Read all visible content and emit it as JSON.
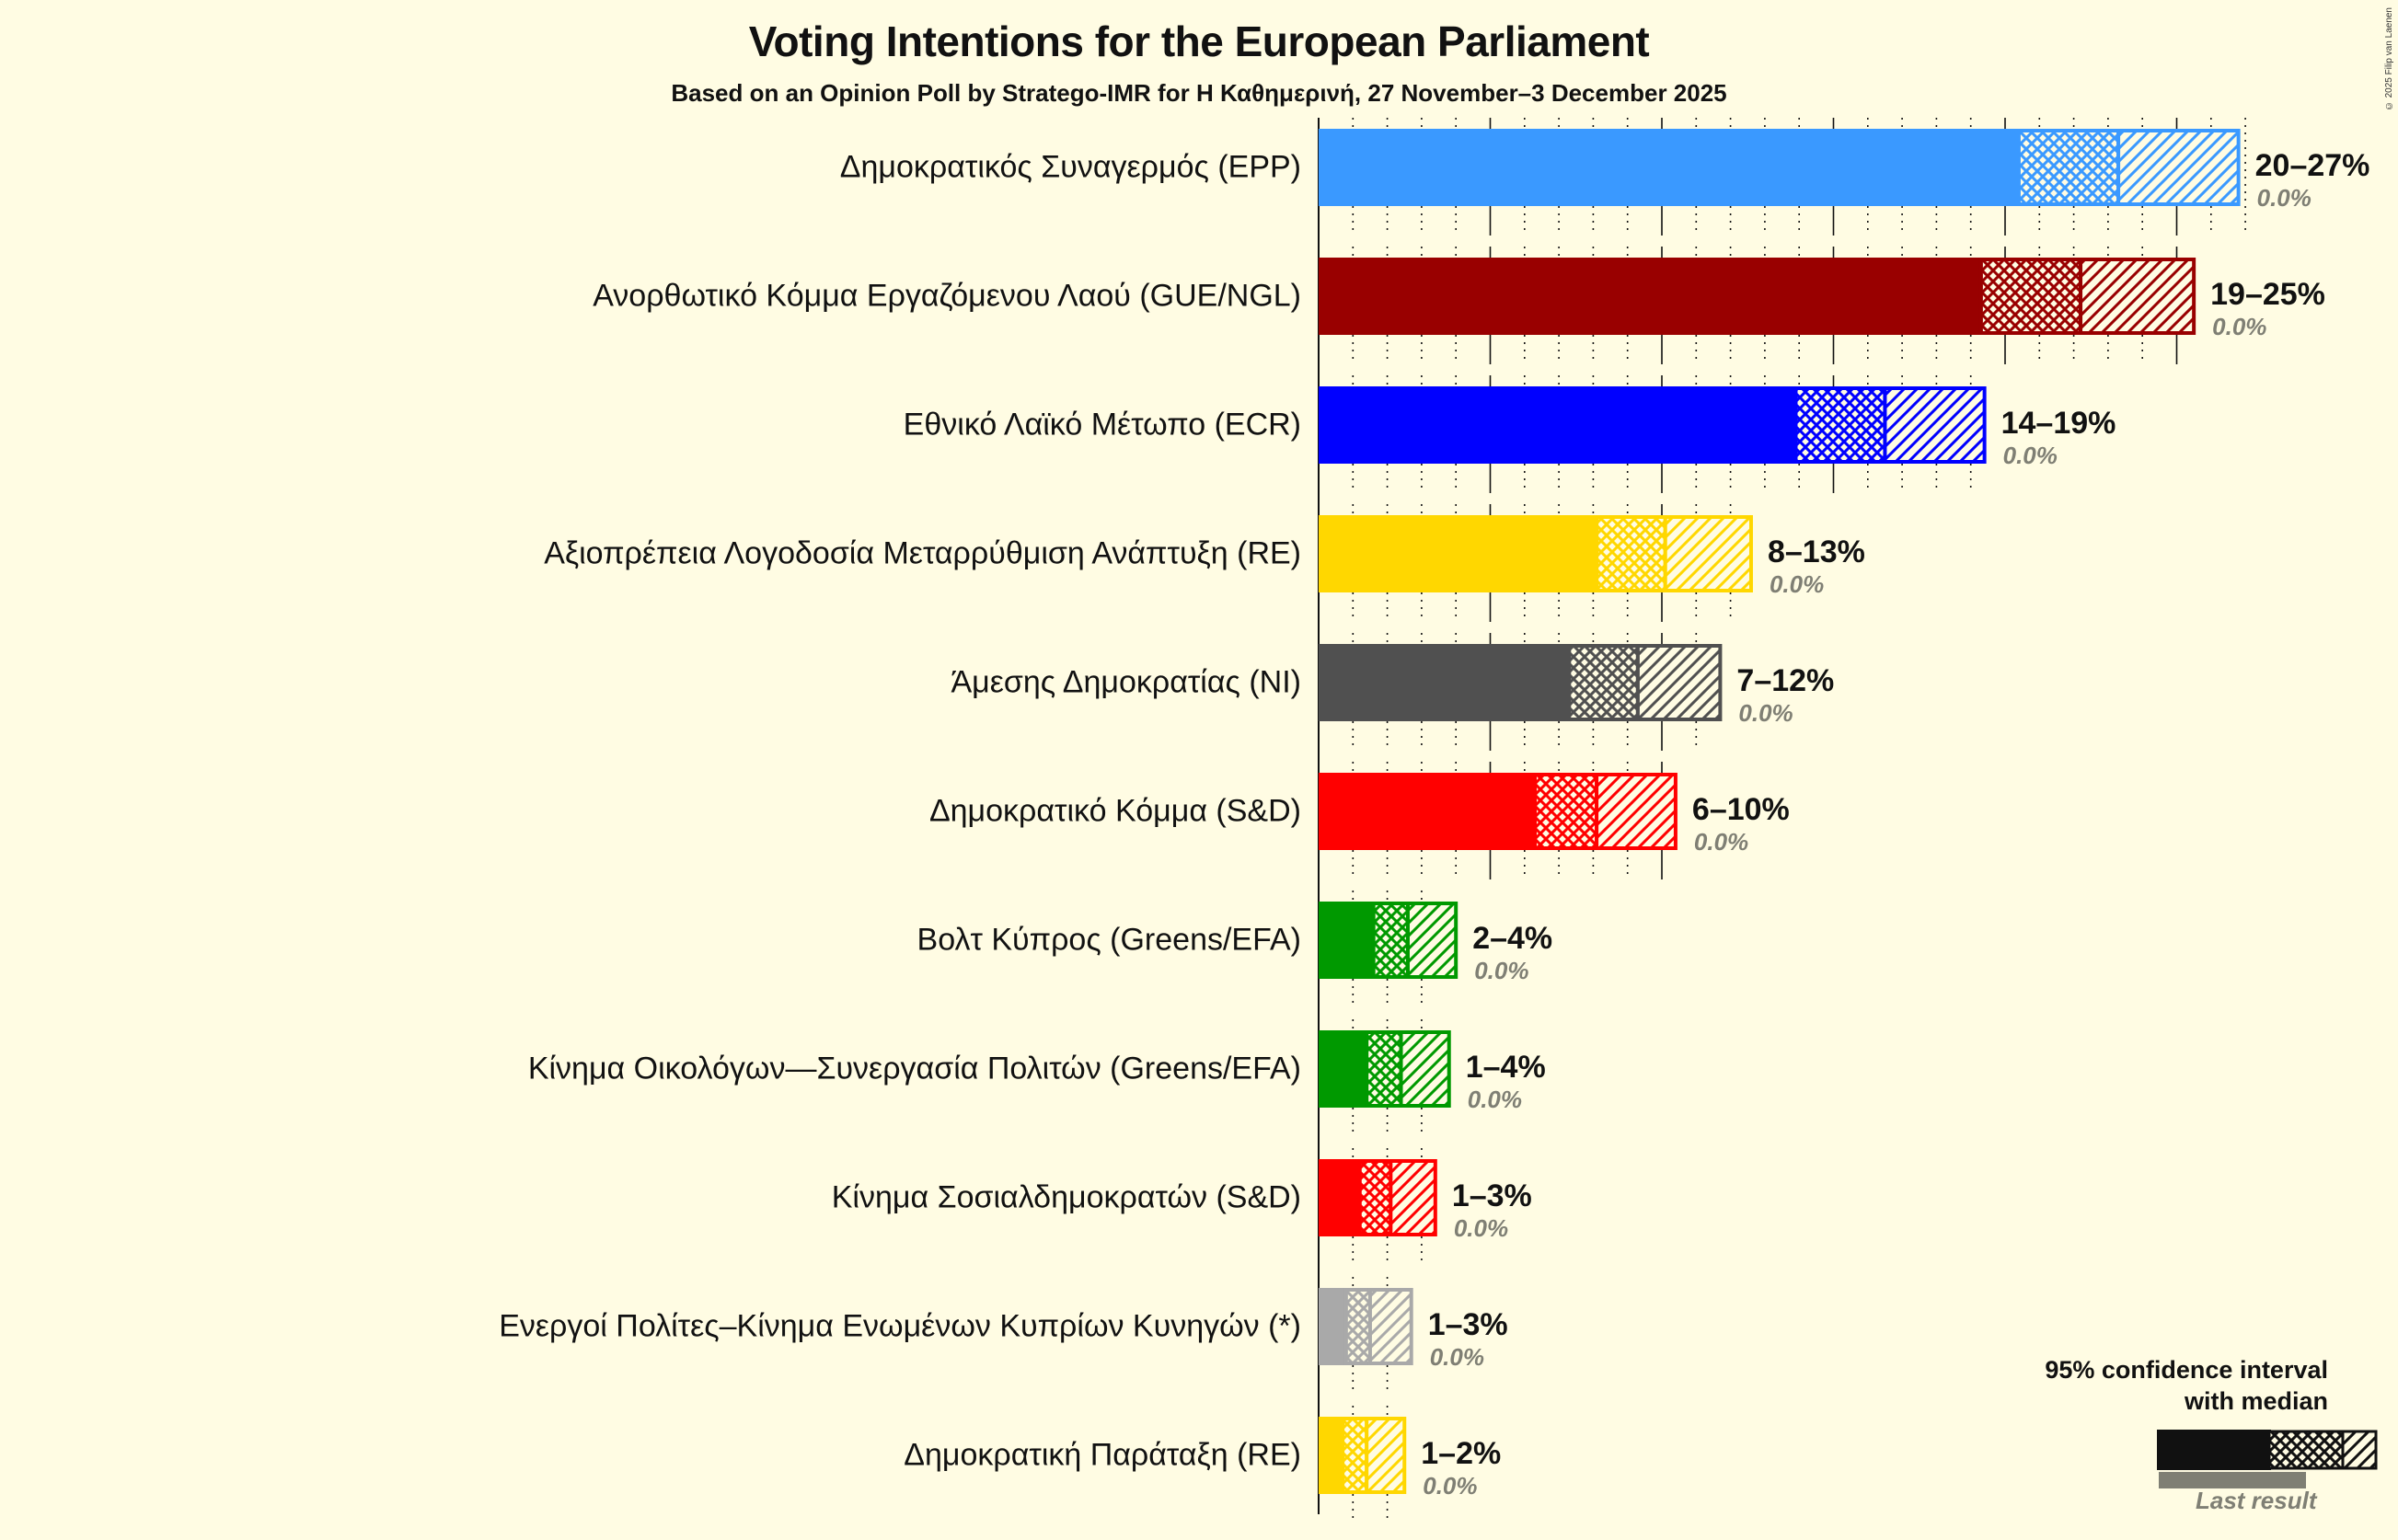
{
  "header": {
    "title": "Voting Intentions for the European Parliament",
    "subtitle": "Based on an Opinion Poll by Stratego-IMR for Η Καθημερινή, 27 November–3 December 2025",
    "copyright": "© 2025 Filip van Laenen"
  },
  "legend": {
    "title_line1": "95% confidence interval",
    "title_line2": "with median",
    "last_result_label": "Last result"
  },
  "chart_data": {
    "type": "bar",
    "orientation": "horizontal",
    "title": "Voting Intentions for the European Parliament",
    "subtitle": "Based on an Opinion Poll by Stratego-IMR for Η Καθημερινή, 27 November–3 December 2025",
    "xlabel": "",
    "ylabel": "",
    "xlim": [
      0,
      30
    ],
    "grid": {
      "major_every": 5,
      "minor_every": 1
    },
    "legend_position": "bottom-right",
    "categories": [
      "Δημοκρατικός Συναγερμός (EPP)",
      "Ανορθωτικό Κόμμα Εργαζόμενου Λαού (GUE/NGL)",
      "Εθνικό Λαϊκό Μέτωπο (ECR)",
      "Αξιοπρέπεια Λογοδοσία Μεταρρύθμιση Ανάπτυξη (RE)",
      "Άμεσης Δημοκρατίας (NI)",
      "Δημοκρατικό Κόμμα (S&D)",
      "Βολτ Κύπρος (Greens/EFA)",
      "Κίνημα Οικολόγων—Συνεργασία Πολιτών (Greens/EFA)",
      "Κίνημα Σοσιαλδημοκρατών (S&D)",
      "Ενεργοί Πολίτες–Κίνημα Ενωμένων Κυπρίων Κυνηγών (*)",
      "Δημοκρατική Παράταξη (RE)"
    ],
    "series": [
      {
        "name": "CI low",
        "values": [
          20.4,
          19.3,
          13.9,
          8.1,
          7.3,
          6.3,
          1.6,
          1.4,
          1.2,
          0.8,
          0.7
        ]
      },
      {
        "name": "Median",
        "values": [
          23.3,
          22.2,
          16.5,
          10.1,
          9.3,
          8.1,
          2.6,
          2.4,
          2.1,
          1.5,
          1.4
        ]
      },
      {
        "name": "CI high",
        "values": [
          26.8,
          25.5,
          19.4,
          12.6,
          11.7,
          10.4,
          4.0,
          3.8,
          3.4,
          2.7,
          2.5
        ]
      },
      {
        "name": "Last result",
        "values": [
          0.0,
          0.0,
          0.0,
          0.0,
          0.0,
          0.0,
          0.0,
          0.0,
          0.0,
          0.0,
          0.0
        ]
      }
    ]
  },
  "parties": [
    {
      "name": "Δημοκρατικός Συναγερμός (EPP)",
      "range": "20–27%",
      "last": "0.0%",
      "color": "#3A99FF",
      "low": 20.4,
      "median": 23.3,
      "high": 26.8,
      "grid_extent": 27
    },
    {
      "name": "Ανορθωτικό Κόμμα Εργαζόμενου Λαού (GUE/NGL)",
      "range": "19–25%",
      "last": "0.0%",
      "color": "#990000",
      "low": 19.3,
      "median": 22.2,
      "high": 25.5,
      "grid_extent": 25
    },
    {
      "name": "Εθνικό Λαϊκό Μέτωπο (ECR)",
      "range": "14–19%",
      "last": "0.0%",
      "color": "#0000FF",
      "low": 13.9,
      "median": 16.5,
      "high": 19.4,
      "grid_extent": 19
    },
    {
      "name": "Αξιοπρέπεια Λογοδοσία Μεταρρύθμιση Ανάπτυξη (RE)",
      "range": "8–13%",
      "last": "0.0%",
      "color": "#FFD700",
      "low": 8.1,
      "median": 10.1,
      "high": 12.6,
      "grid_extent": 12
    },
    {
      "name": "Άμεσης Δημοκρατίας (NI)",
      "range": "7–12%",
      "last": "0.0%",
      "color": "#505050",
      "low": 7.3,
      "median": 9.3,
      "high": 11.7,
      "grid_extent": 11
    },
    {
      "name": "Δημοκρατικό Κόμμα (S&D)",
      "range": "6–10%",
      "last": "0.0%",
      "color": "#FF0000",
      "low": 6.3,
      "median": 8.1,
      "high": 10.4,
      "grid_extent": 10
    },
    {
      "name": "Βολτ Κύπρος (Greens/EFA)",
      "range": "2–4%",
      "last": "0.0%",
      "color": "#009900",
      "low": 1.6,
      "median": 2.6,
      "high": 4.0,
      "grid_extent": 3
    },
    {
      "name": "Κίνημα Οικολόγων—Συνεργασία Πολιτών (Greens/EFA)",
      "range": "1–4%",
      "last": "0.0%",
      "color": "#009900",
      "low": 1.4,
      "median": 2.4,
      "high": 3.8,
      "grid_extent": 3
    },
    {
      "name": "Κίνημα Σοσιαλδημοκρατών (S&D)",
      "range": "1–3%",
      "last": "0.0%",
      "color": "#FF0000",
      "low": 1.2,
      "median": 2.1,
      "high": 3.4,
      "grid_extent": 3
    },
    {
      "name": "Ενεργοί Πολίτες–Κίνημα Ενωμένων Κυπρίων Κυνηγών (*)",
      "range": "1–3%",
      "last": "0.0%",
      "color": "#A9A9A9",
      "low": 0.8,
      "median": 1.5,
      "high": 2.7,
      "grid_extent": 2
    },
    {
      "name": "Δημοκρατική Παράταξη (RE)",
      "range": "1–2%",
      "last": "0.0%",
      "color": "#FFD700",
      "low": 0.7,
      "median": 1.4,
      "high": 2.5,
      "grid_extent": 2
    }
  ]
}
